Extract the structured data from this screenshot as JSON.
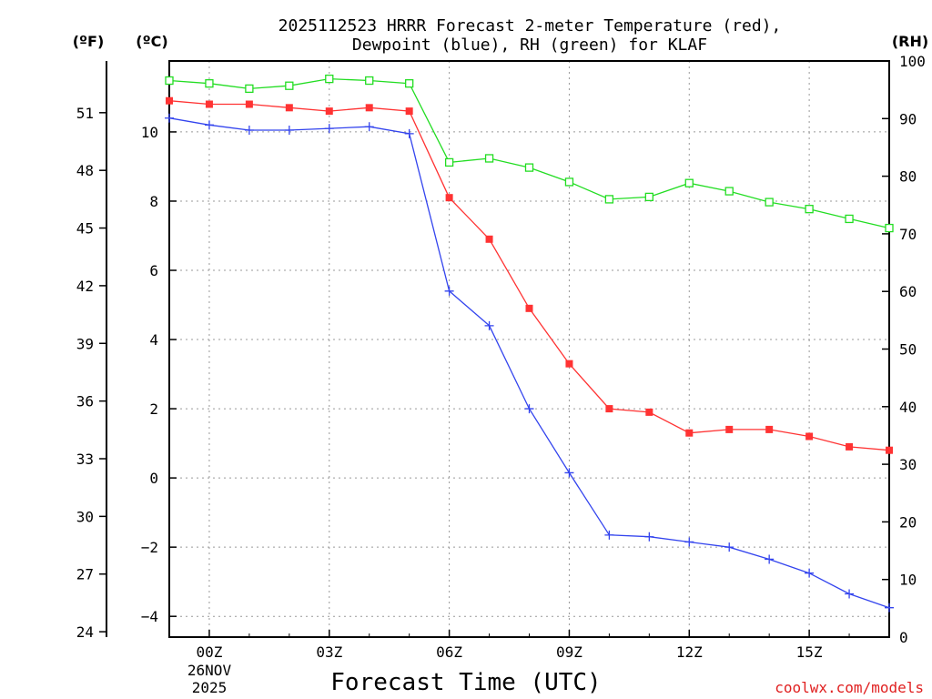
{
  "title_line1": "2025112523 HRRR Forecast 2-meter Temperature (red),",
  "title_line2": "Dewpoint (blue), RH (green) for KLAF",
  "unit_f": "(ºF)",
  "unit_c": "(ºC)",
  "unit_rh": "(RH)",
  "xlabel": "Forecast Time (UTC)",
  "watermark": "coolwx.com/models",
  "date_label_day": "26NOV",
  "date_label_year": "2025",
  "colors": {
    "temperature": "#ff3333",
    "dewpoint": "#3344ee",
    "rh": "#22dd22",
    "grid": "#999999"
  },
  "chart_data": {
    "type": "line",
    "x": [
      -1,
      0,
      1,
      2,
      3,
      4,
      5,
      6,
      7,
      8,
      9,
      10,
      11,
      12,
      13,
      14,
      15,
      16,
      17
    ],
    "xlim": [
      -1,
      17
    ],
    "x_ticks": [
      {
        "value": 0,
        "label": "00Z"
      },
      {
        "value": 3,
        "label": "03Z"
      },
      {
        "value": 6,
        "label": "06Z"
      },
      {
        "value": 9,
        "label": "09Z"
      },
      {
        "value": 12,
        "label": "12Z"
      },
      {
        "value": 15,
        "label": "15Z"
      }
    ],
    "c_axis": {
      "ylim": [
        -4.6,
        12.05
      ],
      "ticks": [
        -4,
        -2,
        0,
        2,
        4,
        6,
        8,
        10
      ]
    },
    "f_axis": {
      "ticks": [
        24,
        27,
        30,
        33,
        36,
        39,
        42,
        45,
        48,
        51
      ]
    },
    "rh_axis": {
      "ylim": [
        0,
        100
      ],
      "ticks": [
        0,
        10,
        20,
        30,
        40,
        50,
        60,
        70,
        80,
        90,
        100
      ]
    },
    "series": [
      {
        "name": "Temperature",
        "axis": "c",
        "marker": "filled-square",
        "values": [
          10.9,
          10.8,
          10.8,
          10.7,
          10.6,
          10.7,
          10.6,
          8.1,
          6.9,
          4.9,
          3.3,
          2.0,
          1.9,
          1.3,
          1.4,
          1.4,
          1.2,
          0.9,
          0.8
        ]
      },
      {
        "name": "Dewpoint",
        "axis": "c",
        "marker": "plus",
        "values": [
          10.4,
          10.2,
          10.05,
          10.05,
          10.1,
          10.15,
          9.95,
          5.4,
          4.4,
          2.0,
          0.15,
          -1.65,
          -1.7,
          -1.85,
          -2.0,
          -2.35,
          -2.75,
          -3.35,
          -3.75
        ]
      },
      {
        "name": "RH",
        "axis": "rh",
        "marker": "open-square",
        "values": [
          96.6,
          96.1,
          95.2,
          95.7,
          96.9,
          96.6,
          96.1,
          82.4,
          83.1,
          81.5,
          79.0,
          76.0,
          76.4,
          78.8,
          77.4,
          75.5,
          74.3,
          72.6,
          71.0
        ]
      }
    ]
  }
}
